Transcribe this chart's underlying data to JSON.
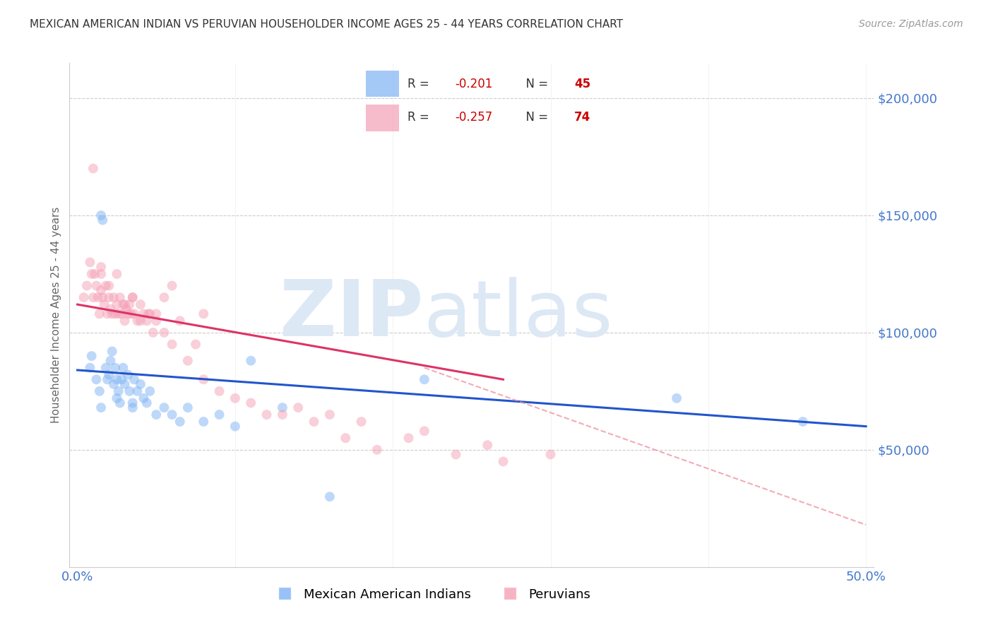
{
  "title": "MEXICAN AMERICAN INDIAN VS PERUVIAN HOUSEHOLDER INCOME AGES 25 - 44 YEARS CORRELATION CHART",
  "source": "Source: ZipAtlas.com",
  "ylabel": "Householder Income Ages 25 - 44 years",
  "ylim": [
    0,
    215000
  ],
  "xlim": [
    -0.005,
    0.505
  ],
  "yticks": [
    50000,
    100000,
    150000,
    200000
  ],
  "xticks": [
    0.0,
    0.1,
    0.2,
    0.3,
    0.4,
    0.5
  ],
  "background_color": "#ffffff",
  "scatter_alpha": 0.5,
  "scatter_size": 100,
  "blue_color": "#7fb3f5",
  "pink_color": "#f5a0b5",
  "blue_line_color": "#2255cc",
  "pink_line_color": "#dd3366",
  "pink_dash_color": "#ee8899",
  "title_color": "#333333",
  "axis_label_color": "#4477cc",
  "grid_color": "#cccccc",
  "watermark_zip": "ZIP",
  "watermark_atlas": "atlas",
  "watermark_color": "#dde8f5",
  "blue_scatter_x": [
    0.008,
    0.009,
    0.012,
    0.014,
    0.015,
    0.016,
    0.018,
    0.019,
    0.02,
    0.021,
    0.022,
    0.023,
    0.024,
    0.025,
    0.026,
    0.027,
    0.028,
    0.029,
    0.03,
    0.032,
    0.033,
    0.035,
    0.036,
    0.038,
    0.04,
    0.042,
    0.044,
    0.046,
    0.05,
    0.055,
    0.06,
    0.065,
    0.07,
    0.08,
    0.09,
    0.1,
    0.11,
    0.13,
    0.16,
    0.22,
    0.38,
    0.46,
    0.015,
    0.025,
    0.035
  ],
  "blue_scatter_y": [
    85000,
    90000,
    80000,
    75000,
    150000,
    148000,
    85000,
    80000,
    82000,
    88000,
    92000,
    78000,
    85000,
    80000,
    75000,
    70000,
    80000,
    85000,
    78000,
    82000,
    75000,
    70000,
    80000,
    75000,
    78000,
    72000,
    70000,
    75000,
    65000,
    68000,
    65000,
    62000,
    68000,
    62000,
    65000,
    60000,
    88000,
    68000,
    30000,
    80000,
    72000,
    62000,
    68000,
    72000,
    68000
  ],
  "pink_scatter_x": [
    0.004,
    0.006,
    0.008,
    0.009,
    0.01,
    0.011,
    0.012,
    0.013,
    0.014,
    0.015,
    0.015,
    0.016,
    0.017,
    0.018,
    0.019,
    0.02,
    0.021,
    0.022,
    0.023,
    0.024,
    0.025,
    0.026,
    0.027,
    0.028,
    0.029,
    0.03,
    0.031,
    0.032,
    0.033,
    0.034,
    0.035,
    0.036,
    0.038,
    0.04,
    0.042,
    0.044,
    0.046,
    0.048,
    0.05,
    0.055,
    0.06,
    0.065,
    0.07,
    0.075,
    0.08,
    0.09,
    0.1,
    0.11,
    0.12,
    0.13,
    0.14,
    0.15,
    0.17,
    0.19,
    0.21,
    0.24,
    0.27,
    0.18,
    0.22,
    0.26,
    0.3,
    0.16,
    0.08,
    0.06,
    0.055,
    0.05,
    0.045,
    0.04,
    0.035,
    0.03,
    0.025,
    0.02,
    0.015,
    0.01
  ],
  "pink_scatter_y": [
    115000,
    120000,
    130000,
    125000,
    115000,
    125000,
    120000,
    115000,
    108000,
    125000,
    118000,
    115000,
    112000,
    120000,
    108000,
    115000,
    110000,
    108000,
    115000,
    108000,
    112000,
    108000,
    115000,
    108000,
    112000,
    105000,
    110000,
    108000,
    112000,
    108000,
    115000,
    108000,
    105000,
    112000,
    108000,
    105000,
    108000,
    100000,
    105000,
    100000,
    95000,
    105000,
    88000,
    95000,
    80000,
    75000,
    72000,
    70000,
    65000,
    65000,
    68000,
    62000,
    55000,
    50000,
    55000,
    48000,
    45000,
    62000,
    58000,
    52000,
    48000,
    65000,
    108000,
    120000,
    115000,
    108000,
    108000,
    105000,
    115000,
    112000,
    125000,
    120000,
    128000,
    170000
  ],
  "blue_line_x": [
    0.0,
    0.5
  ],
  "blue_line_y": [
    84000,
    60000
  ],
  "pink_line_x": [
    0.0,
    0.27
  ],
  "pink_line_y": [
    112000,
    80000
  ],
  "pink_dash_line_x": [
    0.22,
    0.5
  ],
  "pink_dash_line_y": [
    85000,
    18000
  ]
}
